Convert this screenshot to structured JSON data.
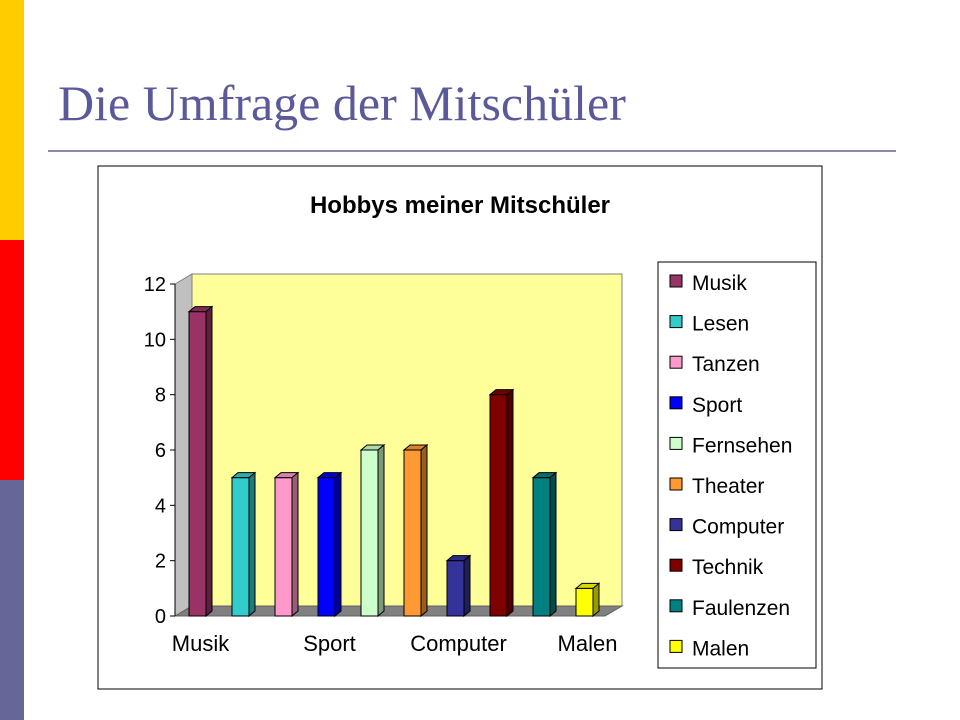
{
  "slide": {
    "title": "Die Umfrage der Mitschüler",
    "accent_colors": [
      "#ffcc00",
      "#ff0000",
      "#666699"
    ]
  },
  "chart_data": {
    "type": "bar",
    "title": "Hobbys meiner Mitschüler",
    "categories": [
      "Musik",
      "Lesen",
      "Tanzen",
      "Sport",
      "Fernsehen",
      "Theater",
      "Computer",
      "Technik",
      "Faulenzen",
      "Malen"
    ],
    "values": [
      11,
      5,
      5,
      5,
      6,
      6,
      2,
      8,
      5,
      1
    ],
    "colors": [
      "#993366",
      "#33cccc",
      "#ff99cc",
      "#0000ff",
      "#ccffcc",
      "#ff9933",
      "#333399",
      "#800000",
      "#008080",
      "#ffff00"
    ],
    "x_tick_labels": [
      "Musik",
      "Sport",
      "Computer",
      "Malen"
    ],
    "y_ticks": [
      0,
      2,
      4,
      6,
      8,
      10,
      12
    ],
    "ylim": [
      0,
      12
    ],
    "xlabel": "",
    "ylabel": "",
    "grid": false,
    "legend_position": "right",
    "plot_background": "#ffff99",
    "three_d": true
  }
}
